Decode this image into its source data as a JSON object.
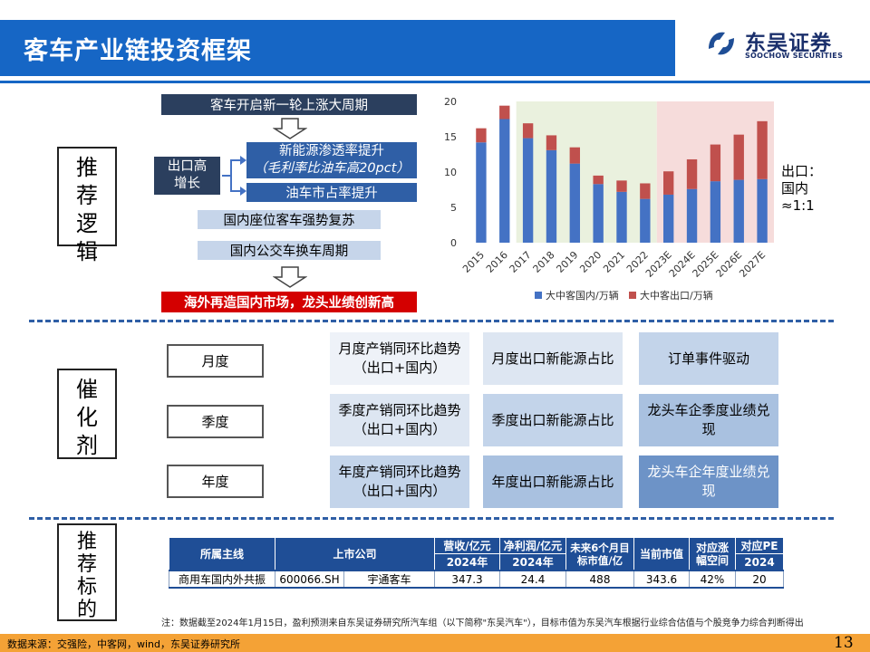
{
  "header": {
    "title": "客车产业链投资框架",
    "logo_cn": "东吴证券",
    "logo_en": "SOOCHOW SECURITIES"
  },
  "sections": {
    "logic": "推荐逻辑",
    "catalyst": "催化剂",
    "targets": "推荐标的"
  },
  "logic": {
    "top": "客车开启新一轮上涨大周期",
    "export": "出口高增长",
    "nev_line1": "新能源渗透率提升",
    "nev_line2": "（毛利率比油车高20pct）",
    "oil": "油车市占率提升",
    "coach": "国内座位客车强势复苏",
    "bus": "国内公交车换车周期",
    "conclusion": "海外再造国内市场，龙头业绩创新高"
  },
  "ratio_note": "出口：国内≈1:1",
  "catalysts": {
    "rows": [
      {
        "label": "月度",
        "cells": [
          "月度产销同环比趋势（出口+国内）",
          "月度出口新能源占比",
          "订单事件驱动"
        ]
      },
      {
        "label": "季度",
        "cells": [
          "季度产销同环比趋势（出口+国内）",
          "季度出口新能源占比",
          "龙头车企季度业绩兑现"
        ]
      },
      {
        "label": "年度",
        "cells": [
          "年度产销同环比趋势（出口+国内）",
          "年度出口新能源占比",
          "龙头车企年度业绩兑现"
        ]
      }
    ]
  },
  "table": {
    "headers": {
      "theme": "所属主线",
      "company": "上市公司",
      "rev": "营收/亿元",
      "profit": "净利润/亿元",
      "target": "未来6个月目标市值/亿",
      "mcap": "当前市值",
      "upside": "对应涨幅空间",
      "pe": "对应PE",
      "rev_year": "2024年",
      "profit_year": "2024年",
      "pe_year": "2024"
    },
    "row": {
      "theme": "商用车国内外共振",
      "code": "600066.SH",
      "name": "宇通客车",
      "rev": "347.3",
      "profit": "24.4",
      "target": "488",
      "mcap": "343.6",
      "upside": "42%",
      "pe": "20"
    }
  },
  "note": "注：数据截至2024年1月15日，盈利预测来自东吴证券研究所汽车组（以下简称\"东吴汽车\"），目标市值为东吴汽车根据行业综合估值与个股竞争力综合判断得出",
  "footer": {
    "source": "数据来源：交强险，中客网，wind，东吴证券研究所",
    "page": "13"
  },
  "chart_data": {
    "type": "bar",
    "stacked": true,
    "categories": [
      "2015",
      "2016",
      "2017",
      "2018",
      "2019",
      "2020",
      "2021",
      "2022",
      "2023E",
      "2024E",
      "2025E",
      "2026E",
      "2027E"
    ],
    "series": [
      {
        "name": "大中客国内/万辆",
        "color": "#4472c4",
        "values": [
          14.2,
          17.5,
          14.8,
          13.1,
          11.2,
          8.3,
          7.2,
          6.2,
          6.8,
          7.6,
          8.7,
          8.9,
          9.0
        ]
      },
      {
        "name": "大中客出口/万辆",
        "color": "#c0504d",
        "values": [
          2.0,
          1.9,
          2.1,
          2.1,
          2.3,
          1.2,
          1.6,
          2.2,
          3.3,
          4.2,
          5.2,
          6.4,
          8.2
        ]
      }
    ],
    "ylim": [
      0,
      20
    ],
    "yticks": [
      0,
      5,
      10,
      15,
      20
    ],
    "shaded_ranges": [
      {
        "from": "2017",
        "to": "2022",
        "color": "#eaf1de"
      },
      {
        "from": "2023E",
        "to": "2027E",
        "color": "#f6dcdb"
      }
    ],
    "legend_position": "bottom"
  }
}
